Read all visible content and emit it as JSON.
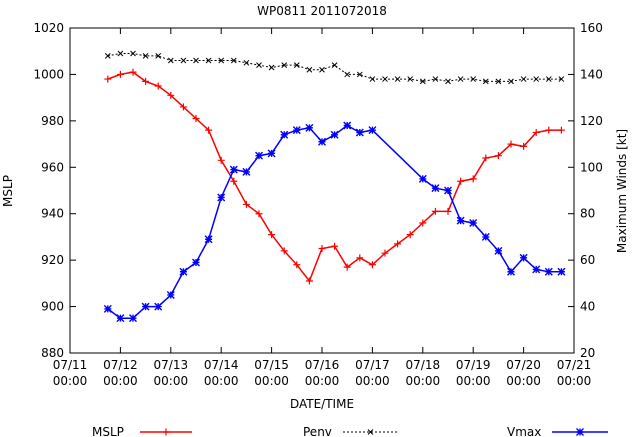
{
  "chart_data": {
    "type": "line",
    "title": "WP0811 2011072018",
    "xlabel": "DATE/TIME",
    "ylabel": "MSLP",
    "y2label": "Maximum Winds [kt]",
    "xlim": [
      0,
      10
    ],
    "ylim": [
      880,
      1020
    ],
    "y2lim": [
      20,
      160
    ],
    "x_ticks": [
      {
        "x": 0,
        "line1": "07/11",
        "line2": "00:00"
      },
      {
        "x": 1,
        "line1": "07/12",
        "line2": "00:00"
      },
      {
        "x": 2,
        "line1": "07/13",
        "line2": "00:00"
      },
      {
        "x": 3,
        "line1": "07/14",
        "line2": "00:00"
      },
      {
        "x": 4,
        "line1": "07/15",
        "line2": "00:00"
      },
      {
        "x": 5,
        "line1": "07/16",
        "line2": "00:00"
      },
      {
        "x": 6,
        "line1": "07/17",
        "line2": "00:00"
      },
      {
        "x": 7,
        "line1": "07/18",
        "line2": "00:00"
      },
      {
        "x": 8,
        "line1": "07/19",
        "line2": "00:00"
      },
      {
        "x": 9,
        "line1": "07/20",
        "line2": "00:00"
      },
      {
        "x": 10,
        "line1": "07/21",
        "line2": "00:00"
      }
    ],
    "y_ticks": [
      "880",
      "900",
      "920",
      "940",
      "960",
      "980",
      "1000",
      "1020"
    ],
    "y2_ticks": [
      "20",
      "40",
      "60",
      "80",
      "100",
      "120",
      "140",
      "160"
    ],
    "legend_placement": "bottom",
    "series": [
      {
        "name": "MSLP",
        "axis": "left",
        "color": "#ff0000",
        "marker": "plus",
        "dash": "solid",
        "x": [
          0.75,
          1.0,
          1.25,
          1.5,
          1.75,
          2.0,
          2.25,
          2.5,
          2.75,
          3.0,
          3.25,
          3.5,
          3.75,
          4.0,
          4.25,
          4.5,
          4.75,
          5.0,
          5.25,
          5.5,
          5.75,
          6.0,
          6.25,
          6.5,
          6.75,
          7.0,
          7.25,
          7.5,
          7.75,
          8.0,
          8.25,
          8.5,
          8.75,
          9.0,
          9.25,
          9.5,
          9.75
        ],
        "values": [
          998,
          1000,
          1001,
          997,
          995,
          991,
          986,
          981,
          976,
          963,
          954,
          944,
          940,
          931,
          924,
          918,
          911,
          925,
          926,
          917,
          921,
          918,
          923,
          927,
          931,
          936,
          941,
          941,
          954,
          955,
          964,
          965,
          970,
          969,
          975,
          976,
          976
        ]
      },
      {
        "name": "Penv",
        "axis": "left",
        "color": "#000000",
        "marker": "cross",
        "dash": "dotted",
        "x": [
          0.75,
          1.0,
          1.25,
          1.5,
          1.75,
          2.0,
          2.25,
          2.5,
          2.75,
          3.0,
          3.25,
          3.5,
          3.75,
          4.0,
          4.25,
          4.5,
          4.75,
          5.0,
          5.25,
          5.5,
          5.75,
          6.0,
          6.25,
          6.5,
          6.75,
          7.0,
          7.25,
          7.5,
          7.75,
          8.0,
          8.25,
          8.5,
          8.75,
          9.0,
          9.25,
          9.5,
          9.75
        ],
        "values": [
          1008,
          1009,
          1009,
          1008,
          1008,
          1006,
          1006,
          1006,
          1006,
          1006,
          1006,
          1005,
          1004,
          1003,
          1004,
          1004,
          1002,
          1002,
          1004,
          1000,
          1000,
          998,
          998,
          998,
          998,
          997,
          998,
          997,
          998,
          998,
          997,
          997,
          997,
          998,
          998,
          998,
          998
        ]
      },
      {
        "name": "Vmax",
        "axis": "right",
        "color": "#0000ff",
        "marker": "star",
        "dash": "solid",
        "x": [
          0.75,
          1.0,
          1.25,
          1.5,
          1.75,
          2.0,
          2.25,
          2.5,
          2.75,
          3.0,
          3.25,
          3.5,
          3.75,
          4.0,
          4.25,
          4.5,
          4.75,
          5.0,
          5.25,
          5.5,
          5.75,
          6.0,
          7.0,
          7.25,
          7.5,
          7.75,
          8.0,
          8.25,
          8.5,
          8.75,
          9.0,
          9.25,
          9.5,
          9.75
        ],
        "values": [
          39,
          35,
          35,
          40,
          40,
          45,
          55,
          59,
          69,
          87,
          99,
          98,
          105,
          106,
          114,
          116,
          117,
          111,
          114,
          118,
          115,
          116,
          95,
          91,
          90,
          77,
          76,
          70,
          64,
          55,
          61,
          56,
          55,
          55
        ]
      }
    ]
  }
}
